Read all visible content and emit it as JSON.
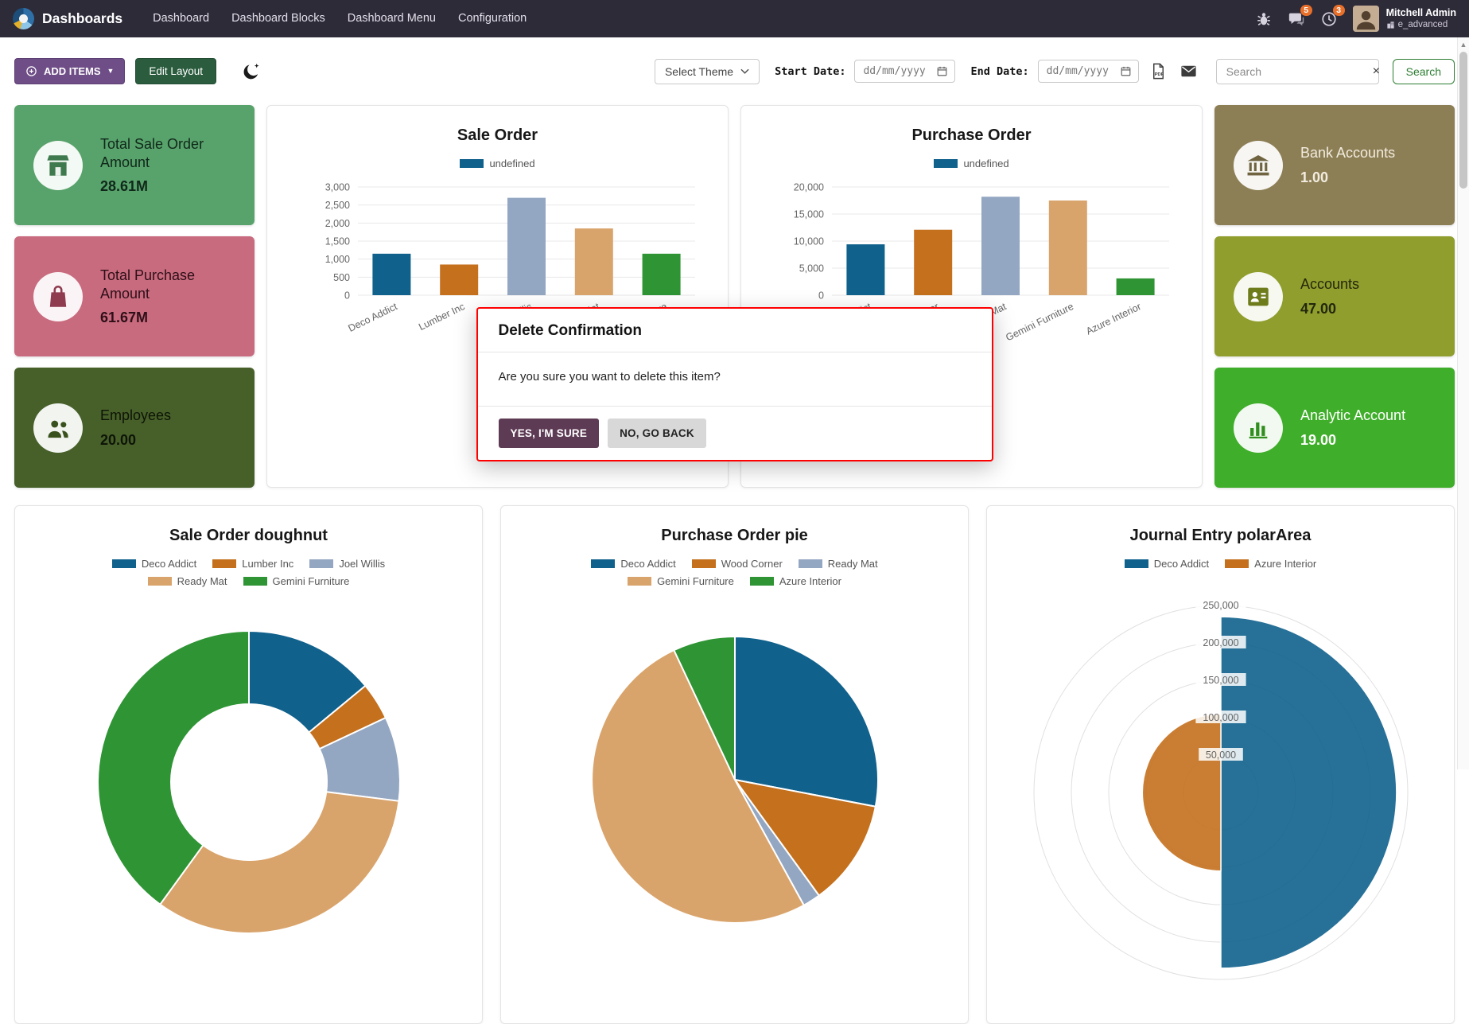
{
  "colors": {
    "navbar_bg": "#2e2b39",
    "accent_purple": "#6f4e87",
    "edit_layout_green": "#2b5c3e",
    "search_green": "#2e7d32",
    "badge_orange": "#e8702a",
    "modal_border": "#ff0000",
    "modal_confirm_bg": "#5e3b55"
  },
  "palette": [
    "#10618c",
    "#c4701d",
    "#94a7c2",
    "#d9a46c",
    "#2e9434"
  ],
  "navbar": {
    "brand": "Dashboards",
    "menu": [
      "Dashboard",
      "Dashboard Blocks",
      "Dashboard Menu",
      "Configuration"
    ],
    "messages_badge": "5",
    "activities_badge": "3",
    "user_name": "Mitchell Admin",
    "company": "e_advanced"
  },
  "toolbar": {
    "add_items": "ADD ITEMS",
    "edit_layout": "Edit Layout",
    "select_theme": "Select Theme",
    "start_date_label": "Start Date:",
    "end_date_label": "End Date:",
    "date_placeholder": "dd/mm/yyyy",
    "search_placeholder": "Search",
    "search_button": "Search"
  },
  "tiles": [
    {
      "title": "Total Sale Order Amount",
      "value": "28.61M",
      "bg": "#58a26b",
      "fg": "#10281a",
      "icon_color": "#3f7a4f",
      "icon": "store"
    },
    {
      "title": "Total Purchase Amount",
      "value": "61.67M",
      "bg": "#c96b7e",
      "fg": "#2d0f18",
      "icon_color": "#8f3b50",
      "icon": "bag"
    },
    {
      "title": "Employees",
      "value": "20.00",
      "bg": "#47602a",
      "fg": "#0d1406",
      "icon_color": "#39511c",
      "icon": "users"
    },
    {
      "title": "Bank Accounts",
      "value": "1.00",
      "bg": "#8d7f55",
      "fg": "#f2ece0",
      "icon_color": "#6f6340",
      "icon": "bank"
    },
    {
      "title": "Accounts",
      "value": "47.00",
      "bg": "#909e2e",
      "fg": "#23270b",
      "icon_color": "#6f7c1c",
      "icon": "contacts"
    },
    {
      "title": "Analytic Account",
      "value": "19.00",
      "bg": "#3fae2a",
      "fg": "#ffffff",
      "icon_color": "#2f8e1d",
      "icon": "chart"
    }
  ],
  "modal": {
    "title": "Delete Confirmation",
    "message": "Are you sure you want to delete this item?",
    "confirm": "YES, I'M SURE",
    "cancel": "NO, GO BACK"
  },
  "chart_data": [
    {
      "type": "bar",
      "title": "Sale Order",
      "legend": [
        "undefined"
      ],
      "categories": [
        "Deco Addict",
        "Lumber Inc",
        "Joel Willis",
        "Ready Mat",
        "Gemini Furniture"
      ],
      "values": [
        1150,
        850,
        2700,
        1850,
        1150
      ],
      "yticks": [
        0,
        500,
        1000,
        1500,
        2000,
        2500,
        3000
      ],
      "ylim": [
        0,
        3000
      ],
      "xlabel": "",
      "ylabel": "",
      "grid": true,
      "legend_position": "top"
    },
    {
      "type": "bar",
      "title": "Purchase Order",
      "legend": [
        "undefined"
      ],
      "categories": [
        "Deco Addict",
        "Wood Corner",
        "Ready Mat",
        "Gemini Furniture",
        "Azure Interior"
      ],
      "values": [
        9400,
        12100,
        18200,
        17500,
        3100
      ],
      "yticks": [
        0,
        5000,
        10000,
        15000,
        20000
      ],
      "ylim": [
        0,
        20000
      ],
      "xlabel": "",
      "ylabel": "",
      "grid": true,
      "legend_position": "top"
    },
    {
      "type": "doughnut",
      "title": "Sale Order doughnut",
      "labels": [
        "Deco Addict",
        "Lumber Inc",
        "Joel Willis",
        "Ready Mat",
        "Gemini Furniture"
      ],
      "values": [
        14,
        4,
        9,
        33,
        40
      ],
      "legend_position": "top"
    },
    {
      "type": "pie",
      "title": "Purchase Order pie",
      "labels": [
        "Deco Addict",
        "Wood Corner",
        "Ready Mat",
        "Gemini Furniture",
        "Azure Interior"
      ],
      "values": [
        28,
        12,
        2,
        51,
        7
      ],
      "legend_position": "top"
    },
    {
      "type": "polarArea",
      "title": "Journal Entry polarArea",
      "labels": [
        "Deco Addict",
        "Azure Interior"
      ],
      "values": [
        235000,
        105000
      ],
      "rticks": [
        50000,
        100000,
        150000,
        200000,
        250000
      ],
      "rmax": 250000,
      "legend_position": "top"
    }
  ]
}
